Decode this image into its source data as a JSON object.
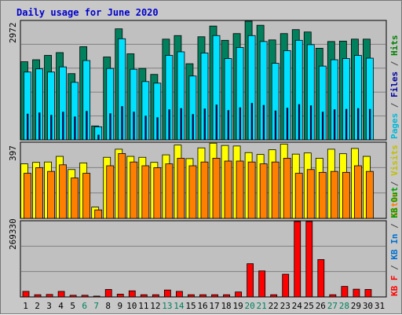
{
  "chart_data": {
    "title": "Daily usage for June 2020",
    "type": "bar",
    "x": [
      "1",
      "2",
      "3",
      "4",
      "5",
      "6",
      "7",
      "8",
      "9",
      "10",
      "11",
      "12",
      "13",
      "14",
      "15",
      "16",
      "17",
      "18",
      "19",
      "20",
      "21",
      "22",
      "23",
      "24",
      "25",
      "26",
      "27",
      "28",
      "29",
      "30",
      "31"
    ],
    "weekend_days": [
      "6",
      "7",
      "13",
      "14",
      "20",
      "21",
      "27",
      "28"
    ],
    "panels": [
      {
        "id": "hits-files-pages",
        "ymax_label": "2972",
        "ymax": 2972,
        "series": [
          {
            "name": "Hits",
            "color": "#00805c",
            "values": [
              1970,
              2020,
              2130,
              2200,
              1670,
              2350,
              350,
              2090,
              2800,
              2170,
              1800,
              1650,
              2540,
              2630,
              1920,
              2600,
              2870,
              2510,
              2680,
              3000,
              2890,
              2520,
              2680,
              2780,
              2720,
              2310,
              2480,
              2490,
              2540,
              2540,
              0
            ]
          },
          {
            "name": "Files",
            "color": "#00e0ff",
            "values": [
              1710,
              1790,
              1710,
              1840,
              1450,
              2000,
              330,
              1800,
              2550,
              1780,
              1470,
              1430,
              2130,
              2220,
              1610,
              2190,
              2630,
              2050,
              2330,
              2630,
              2480,
              1930,
              2250,
              2510,
              2400,
              1860,
              2020,
              2050,
              2130,
              2060,
              0
            ]
          },
          {
            "name": "Pages",
            "color": "#0000c0",
            "values": [
              650,
              680,
              620,
              700,
              580,
              720,
              120,
              660,
              840,
              700,
              600,
              560,
              760,
              790,
              640,
              780,
              880,
              740,
              810,
              920,
              870,
              730,
              800,
              890,
              860,
              700,
              760,
              770,
              790,
              770,
              0
            ]
          }
        ]
      },
      {
        "id": "visits-sites",
        "ymax_label": "397",
        "ymax": 397,
        "series": [
          {
            "name": "Visits",
            "color": "#ffff00",
            "values": [
              290,
              298,
              300,
              330,
              260,
              295,
              60,
              325,
              368,
              330,
              325,
              298,
              338,
              390,
              318,
              375,
              400,
              388,
              385,
              350,
              340,
              365,
              395,
              342,
              348,
              320,
              368,
              344,
              372,
              330,
              0
            ]
          },
          {
            "name": "Sites",
            "color": "#ff8000",
            "values": [
              240,
              270,
              250,
              285,
              215,
              240,
              45,
              280,
              345,
              300,
              280,
              270,
              290,
              320,
              280,
              300,
              320,
              305,
              305,
              300,
              290,
              300,
              320,
              240,
              260,
              245,
              250,
              245,
              280,
              250,
              0
            ]
          }
        ]
      },
      {
        "id": "kb-f-in-out",
        "ymax_label": "269330",
        "ymax": 269330,
        "series": [
          {
            "name": "KB F",
            "color": "#ff0000",
            "values": [
              20000,
              8000,
              9000,
              20000,
              6000,
              6000,
              3000,
              27000,
              10000,
              22000,
              8000,
              8000,
              25000,
              20000,
              8000,
              8000,
              8000,
              8000,
              18000,
              120000,
              94000,
              8000,
              82000,
              275000,
              275000,
              135000,
              8000,
              38000,
              28000,
              27000,
              0
            ]
          },
          {
            "name": "KB In",
            "color": "#0080ff",
            "values": []
          },
          {
            "name": "KB Out",
            "color": "#00a000",
            "values": []
          }
        ]
      }
    ],
    "right_labels": {
      "panel1": [
        {
          "text": "Pages",
          "color": "#00b8d8"
        },
        {
          "text": " / ",
          "color": "#444444"
        },
        {
          "text": "Files",
          "color": "#0000a0"
        },
        {
          "text": " / ",
          "color": "#444444"
        },
        {
          "text": "Hits",
          "color": "#008000"
        }
      ],
      "panel2": [
        {
          "text": "Sites",
          "color": "#ff8000"
        },
        {
          "text": " / ",
          "color": "#444444"
        },
        {
          "text": "Visits",
          "color": "#c0c000"
        }
      ],
      "panel3": [
        {
          "text": "KB F",
          "color": "#ff0000"
        },
        {
          "text": " / ",
          "color": "#444444"
        },
        {
          "text": "KB In",
          "color": "#0070d0"
        },
        {
          "text": " / ",
          "color": "#444444"
        },
        {
          "text": "KB Out",
          "color": "#00a000"
        }
      ]
    },
    "colors": {
      "title": "#0000cc",
      "weekday_label": "#000000",
      "weekend_label": "#00805c",
      "panel_bg": "#c0c0c0",
      "grid": "#808080"
    }
  }
}
